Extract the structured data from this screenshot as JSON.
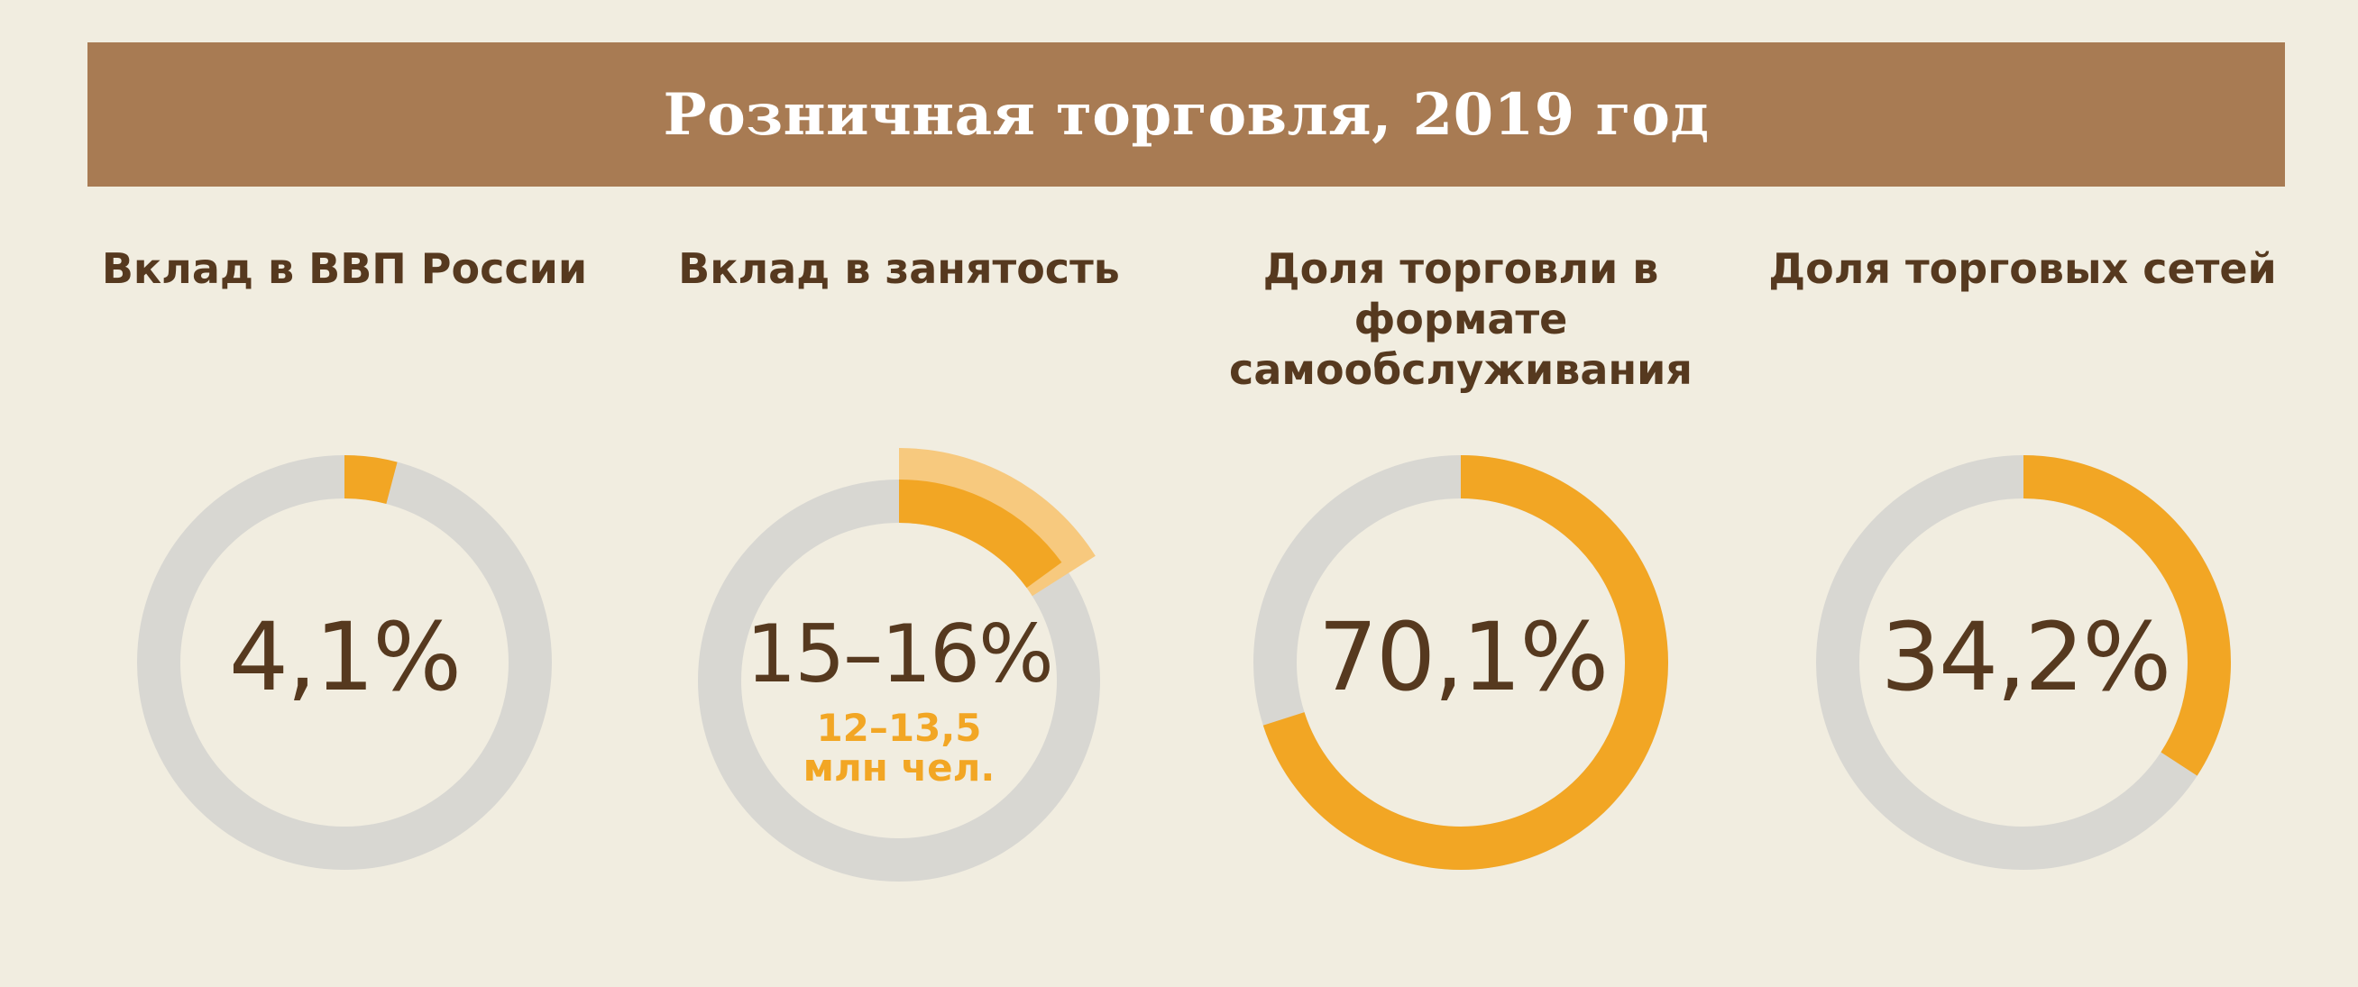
{
  "header": {
    "title": "Розничная торговля, 2019 год"
  },
  "colors": {
    "background": "#f1ede0",
    "banner": "#a87b53",
    "track": "#d8d7d2",
    "accent": "#f2a624",
    "accent_light": "#f7c97e",
    "text": "#56391f"
  },
  "chart_data": [
    {
      "type": "pie",
      "title": "Вклад в ВВП России",
      "value_percent": 4.1,
      "label": "4,1%"
    },
    {
      "type": "pie",
      "title": "Вклад в занятость",
      "value_percent_range": [
        15,
        16
      ],
      "label": "15–16%",
      "sublabel_line1": "12–13,5",
      "sublabel_line2": "млн чел."
    },
    {
      "type": "pie",
      "title": "Доля торговли в формате самообслуживания",
      "value_percent": 70.1,
      "label": "70,1%"
    },
    {
      "type": "pie",
      "title": "Доля торговых сетей",
      "value_percent": 34.2,
      "label": "34,2%"
    }
  ]
}
